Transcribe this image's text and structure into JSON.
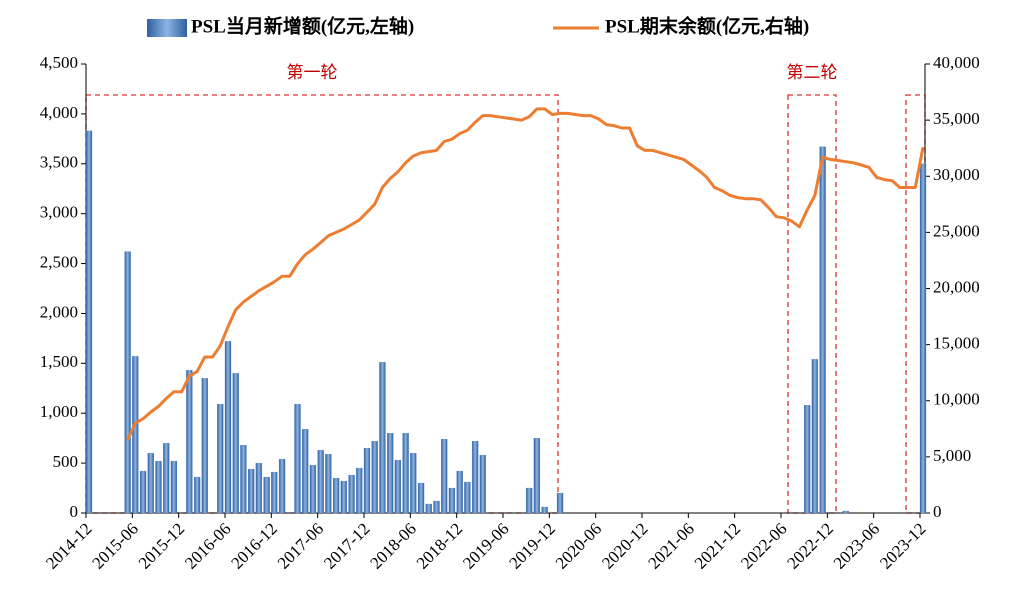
{
  "chart_data": {
    "type": "bar-line",
    "categories": [
      "2014-12",
      null,
      null,
      null,
      null,
      null,
      "2015-06",
      null,
      null,
      null,
      null,
      null,
      "2015-12",
      null,
      null,
      null,
      null,
      null,
      "2016-06",
      null,
      null,
      null,
      null,
      null,
      "2016-12",
      null,
      null,
      null,
      null,
      null,
      "2017-06",
      null,
      null,
      null,
      null,
      null,
      "2017-12",
      null,
      null,
      null,
      null,
      null,
      "2018-06",
      null,
      null,
      null,
      null,
      null,
      "2018-12",
      null,
      null,
      null,
      null,
      null,
      "2019-06",
      null,
      null,
      null,
      null,
      null,
      "2019-12",
      null,
      null,
      null,
      null,
      null,
      "2020-06",
      null,
      null,
      null,
      null,
      null,
      "2020-12",
      null,
      null,
      null,
      null,
      null,
      "2021-06",
      null,
      null,
      null,
      null,
      null,
      "2021-12",
      null,
      null,
      null,
      null,
      null,
      "2022-06",
      null,
      null,
      null,
      null,
      null,
      "2022-12",
      null,
      null,
      null,
      null,
      null,
      "2023-06",
      null,
      null,
      null,
      null,
      null,
      "2023-12"
    ],
    "series": [
      {
        "name": "PSL当月新增额(亿元,左轴)",
        "color": "#4f81bd",
        "type": "bar",
        "values": [
          3830,
          0,
          0,
          0,
          0,
          2620,
          1570,
          420,
          600,
          520,
          700,
          520,
          0,
          1430,
          360,
          1350,
          0,
          1090,
          1720,
          1400,
          680,
          440,
          500,
          360,
          410,
          540,
          0,
          1090,
          840,
          480,
          630,
          590,
          350,
          320,
          380,
          450,
          650,
          720,
          1510,
          800,
          530,
          800,
          600,
          300,
          90,
          120,
          740,
          250,
          420,
          310,
          720,
          580,
          0,
          0,
          0,
          0,
          0,
          250,
          750,
          60,
          0,
          200,
          0,
          0,
          0,
          0,
          0,
          0,
          0,
          0,
          0,
          0,
          0,
          0,
          0,
          0,
          0,
          0,
          0,
          0,
          0,
          0,
          0,
          0,
          0,
          0,
          0,
          0,
          0,
          0,
          0,
          0,
          0,
          1080,
          1540,
          3670,
          0,
          0,
          20,
          0,
          0,
          0,
          0,
          0,
          0,
          0,
          0,
          0,
          3500
        ]
      },
      {
        "name": "PSL期末余额(亿元,右轴)",
        "color": "#ed7d31",
        "type": "line",
        "axis": "y2",
        "values": [
          null,
          null,
          null,
          null,
          null,
          6500,
          8000,
          8400,
          9000,
          9500,
          10200,
          10800,
          10800,
          12200,
          12600,
          13900,
          13900,
          14900,
          16600,
          18100,
          18800,
          19300,
          19800,
          20200,
          20600,
          21100,
          21100,
          22200,
          23000,
          23500,
          24100,
          24700,
          25000,
          25300,
          25700,
          26100,
          26800,
          27500,
          29000,
          29800,
          30400,
          31200,
          31800,
          32100,
          32200,
          32300,
          33100,
          33300,
          33800,
          34100,
          34800,
          35400,
          35400,
          35300,
          35200,
          35100,
          35000,
          35300,
          36000,
          36000,
          35500,
          35600,
          35600,
          35500,
          35400,
          35400,
          35100,
          34600,
          34500,
          34300,
          34300,
          32700,
          32300,
          32300,
          32100,
          31900,
          31700,
          31500,
          31000,
          30500,
          29900,
          29000,
          28700,
          28300,
          28100,
          28000,
          28000,
          27900,
          27200,
          26400,
          26300,
          26000,
          25500,
          27000,
          28300,
          31700,
          31500,
          31400,
          31300,
          31200,
          31000,
          30800,
          29900,
          29700,
          29600,
          29000,
          29000,
          29000,
          32600
        ]
      }
    ],
    "ylim": [
      0,
      4500
    ],
    "yticks": [
      0,
      500,
      {
        "value": 1000,
        "label": "1,000"
      },
      {
        "value": 1500,
        "label": "1,500"
      },
      {
        "value": 2000,
        "label": "2,000"
      },
      {
        "value": 2500,
        "label": "2,500"
      },
      {
        "value": 3000,
        "label": "3,000"
      },
      {
        "value": 3500,
        "label": "3,500"
      },
      {
        "value": 4000,
        "label": "4,000"
      },
      {
        "value": 4500,
        "label": "4,500"
      }
    ],
    "y2lim": [
      0,
      40000
    ],
    "y2ticks": [
      0,
      {
        "value": 5000,
        "label": "5,000"
      },
      {
        "value": 10000,
        "label": "10,000"
      },
      {
        "value": 15000,
        "label": "15,000"
      },
      {
        "value": 20000,
        "label": "20,000"
      },
      {
        "value": 25000,
        "label": "25,000"
      },
      {
        "value": 30000,
        "label": "30,000"
      },
      {
        "value": 35000,
        "label": "35,000"
      },
      {
        "value": 40000,
        "label": "40,000"
      }
    ],
    "annotations": [
      "第一轮",
      "第二轮"
    ],
    "legend": "top"
  }
}
